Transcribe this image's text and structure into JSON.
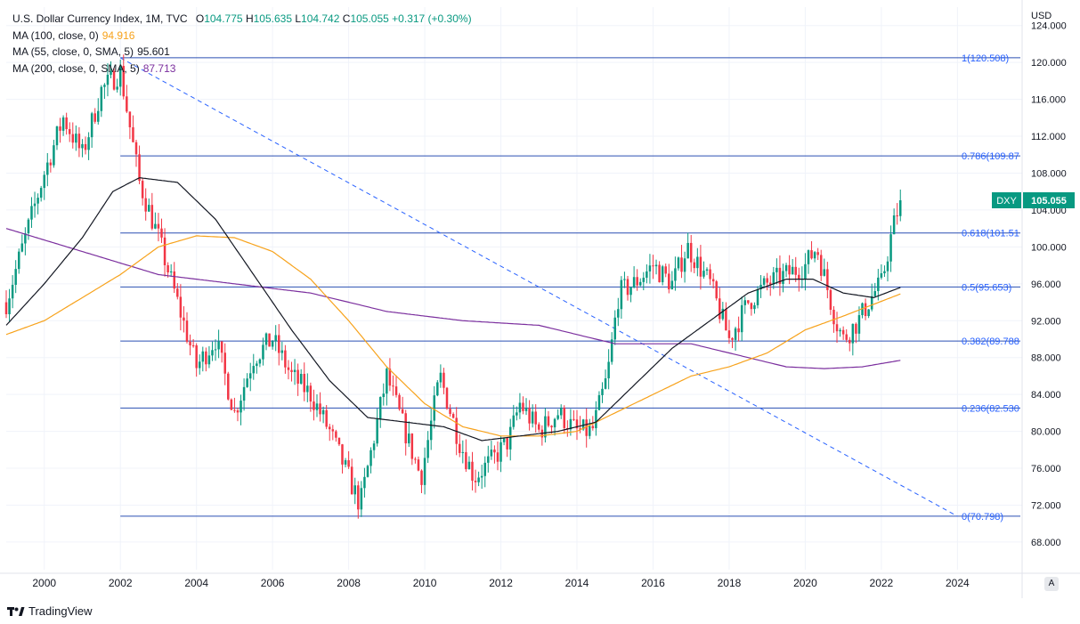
{
  "legend": {
    "title": "U.S. Dollar Currency Index, 1M, TVC",
    "o_label": "O",
    "o_value": "104.775",
    "h_label": "H",
    "h_value": "105.635",
    "l_label": "L",
    "l_value": "104.742",
    "c_label": "C",
    "c_value": "105.055",
    "change": "+0.317 (+0.30%)",
    "ma_lines": [
      {
        "label": "MA (100, close, 0)",
        "value": "94.916",
        "color": "#f7a21b"
      },
      {
        "label": "MA (55, close, 0, SMA, 5)",
        "value": "95.601",
        "color": "#131722"
      },
      {
        "label": "MA (200, close, 0, SMA, 5)",
        "value": "87.713",
        "color": "#7b2f9e"
      }
    ]
  },
  "price_axis": {
    "unit_label": "USD",
    "auto_label": "A",
    "ticks": [
      "68.000",
      "72.000",
      "76.000",
      "80.000",
      "84.000",
      "88.000",
      "92.000",
      "96.000",
      "100.000",
      "104.000",
      "108.000",
      "112.000",
      "116.000",
      "120.000",
      "124.000"
    ]
  },
  "branding": {
    "logo_text": "TradingView"
  },
  "chart_data": {
    "type": "candlestick",
    "title": "U.S. Dollar Currency Index, 1M, TVC",
    "symbol": "DXY",
    "last_price": "105.055",
    "x_range": [
      1999.0,
      2025.7
    ],
    "ylim": [
      65.0,
      126.0
    ],
    "x_ticks": [
      "2000",
      "2002",
      "2004",
      "2006",
      "2008",
      "2010",
      "2012",
      "2014",
      "2016",
      "2018",
      "2020",
      "2022",
      "2024"
    ],
    "colors": {
      "up": "#089981",
      "down": "#f23645",
      "fib": "#2a4fb3",
      "trend": "#2962ff",
      "ma100": "#f7a21b",
      "ma55": "#131722",
      "ma200": "#7b2f9e"
    },
    "fib_levels": [
      {
        "ratio": "1",
        "value": 120.508,
        "label": "1(120.508)"
      },
      {
        "ratio": "0.786",
        "value": 109.87,
        "label": "0.786(109.87"
      },
      {
        "ratio": "0.618",
        "value": 101.51,
        "label": "0.618(101.51"
      },
      {
        "ratio": "0.5",
        "value": 95.653,
        "label": "0.5(95.653)"
      },
      {
        "ratio": "0.382",
        "value": 89.788,
        "label": "0.382(89.788"
      },
      {
        "ratio": "0.236",
        "value": 82.53,
        "label": "0.236(82.530"
      },
      {
        "ratio": "0",
        "value": 70.798,
        "label": "0(70.798)"
      }
    ],
    "fib_start_year": 2002.0,
    "trendline": [
      [
        2002.0,
        120.5
      ],
      [
        2024.0,
        70.8
      ]
    ],
    "price_keypoints": [
      [
        1999.0,
        94
      ],
      [
        1999.5,
        101
      ],
      [
        2000.0,
        108
      ],
      [
        2000.5,
        114
      ],
      [
        2001.0,
        110
      ],
      [
        2001.5,
        117
      ],
      [
        2002.0,
        119
      ],
      [
        2002.5,
        107
      ],
      [
        2003.0,
        101
      ],
      [
        2003.5,
        94
      ],
      [
        2004.0,
        87
      ],
      [
        2004.5,
        90
      ],
      [
        2005.0,
        82
      ],
      [
        2005.5,
        88
      ],
      [
        2006.0,
        90
      ],
      [
        2006.5,
        86
      ],
      [
        2007.0,
        84
      ],
      [
        2007.5,
        80
      ],
      [
        2008.0,
        75
      ],
      [
        2008.3,
        72
      ],
      [
        2008.6,
        78
      ],
      [
        2009.0,
        86
      ],
      [
        2009.4,
        81
      ],
      [
        2009.9,
        75
      ],
      [
        2010.4,
        86
      ],
      [
        2010.9,
        79
      ],
      [
        2011.3,
        75
      ],
      [
        2011.8,
        77
      ],
      [
        2012.2,
        79
      ],
      [
        2012.5,
        83
      ],
      [
        2013.0,
        80
      ],
      [
        2013.5,
        82
      ],
      [
        2014.0,
        80
      ],
      [
        2014.4,
        80
      ],
      [
        2014.8,
        86
      ],
      [
        2015.1,
        95
      ],
      [
        2015.5,
        96
      ],
      [
        2016.0,
        98
      ],
      [
        2016.5,
        96
      ],
      [
        2016.9,
        100
      ],
      [
        2017.5,
        96
      ],
      [
        2018.0,
        90
      ],
      [
        2018.5,
        94
      ],
      [
        2019.0,
        96
      ],
      [
        2019.5,
        97
      ],
      [
        2020.0,
        98
      ],
      [
        2020.3,
        100
      ],
      [
        2020.8,
        92
      ],
      [
        2021.0,
        90
      ],
      [
        2021.4,
        92
      ],
      [
        2021.8,
        95
      ],
      [
        2022.0,
        96
      ],
      [
        2022.3,
        102
      ],
      [
        2022.5,
        105
      ]
    ],
    "ma55_keypoints": [
      [
        1999.0,
        91.5
      ],
      [
        2000.0,
        96
      ],
      [
        2001.0,
        101
      ],
      [
        2001.8,
        106
      ],
      [
        2002.5,
        107.5
      ],
      [
        2003.5,
        107
      ],
      [
        2004.5,
        103
      ],
      [
        2005.5,
        97
      ],
      [
        2006.5,
        91
      ],
      [
        2007.5,
        85.5
      ],
      [
        2008.5,
        81.5
      ],
      [
        2009.5,
        81
      ],
      [
        2010.5,
        80.5
      ],
      [
        2011.5,
        79
      ],
      [
        2012.5,
        79.5
      ],
      [
        2013.5,
        80
      ],
      [
        2014.5,
        81
      ],
      [
        2015.5,
        85
      ],
      [
        2016.5,
        89
      ],
      [
        2017.5,
        92
      ],
      [
        2018.5,
        95
      ],
      [
        2019.5,
        96.5
      ],
      [
        2020.2,
        96.5
      ],
      [
        2021.0,
        95
      ],
      [
        2021.8,
        94.5
      ],
      [
        2022.5,
        95.6
      ]
    ],
    "ma100_keypoints": [
      [
        1999.0,
        90.5
      ],
      [
        2000.0,
        92
      ],
      [
        2001.0,
        94.5
      ],
      [
        2002.0,
        97
      ],
      [
        2003.0,
        100
      ],
      [
        2004.0,
        101.2
      ],
      [
        2005.0,
        101
      ],
      [
        2006.0,
        99.5
      ],
      [
        2007.0,
        96.5
      ],
      [
        2008.0,
        92
      ],
      [
        2009.0,
        87
      ],
      [
        2010.0,
        83
      ],
      [
        2011.0,
        80.5
      ],
      [
        2012.0,
        79.5
      ],
      [
        2013.0,
        79.5
      ],
      [
        2014.0,
        80
      ],
      [
        2015.0,
        82
      ],
      [
        2016.0,
        84
      ],
      [
        2017.0,
        86
      ],
      [
        2018.0,
        87
      ],
      [
        2019.0,
        88.5
      ],
      [
        2020.0,
        91
      ],
      [
        2021.0,
        92.5
      ],
      [
        2022.5,
        94.9
      ]
    ],
    "ma200_keypoints": [
      [
        1999.0,
        102
      ],
      [
        2001.0,
        99.5
      ],
      [
        2003.0,
        97
      ],
      [
        2005.0,
        96
      ],
      [
        2007.0,
        95
      ],
      [
        2009.0,
        93
      ],
      [
        2011.0,
        92
      ],
      [
        2013.0,
        91.5
      ],
      [
        2015.0,
        89.5
      ],
      [
        2017.0,
        89.5
      ],
      [
        2018.5,
        88
      ],
      [
        2019.5,
        87
      ],
      [
        2020.5,
        86.8
      ],
      [
        2021.5,
        87
      ],
      [
        2022.5,
        87.7
      ]
    ]
  }
}
